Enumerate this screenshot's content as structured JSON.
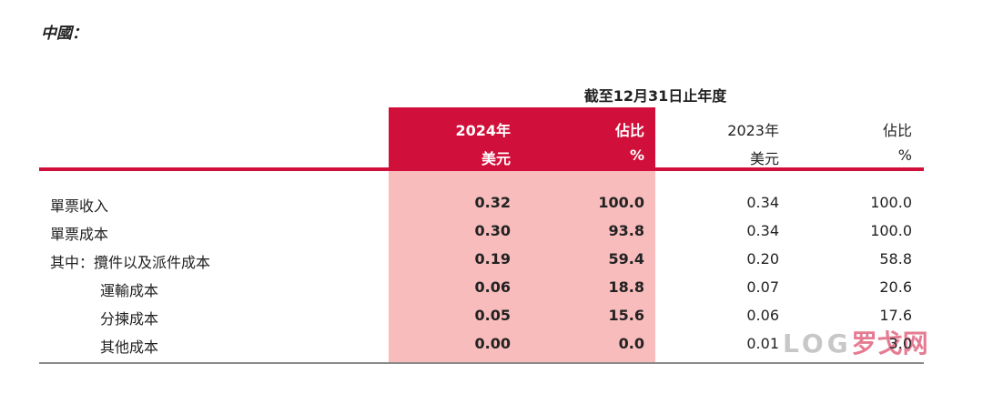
{
  "header": {
    "title": "中國：",
    "period": "截至12月31日止年度"
  },
  "table": {
    "columns": [
      [
        "2024年",
        "美元"
      ],
      [
        "佔比",
        "%"
      ],
      [
        "2023年",
        "美元"
      ],
      [
        "佔比",
        "%"
      ]
    ],
    "rows": [
      [
        "單票收入",
        "0.32",
        "100.0",
        "0.34",
        "100.0"
      ],
      [
        "單票成本",
        "0.30",
        "93.8",
        "0.34",
        "100.0"
      ],
      [
        "其中：攬件以及派件成本",
        "0.19",
        "59.4",
        "0.20",
        "58.8"
      ],
      [
        "運輸成本",
        "0.06",
        "18.8",
        "0.07",
        "20.6"
      ],
      [
        "分揀成本",
        "0.05",
        "15.6",
        "0.06",
        "17.6"
      ],
      [
        "其他成本",
        "0.00",
        "0.0",
        "0.01",
        "3.0"
      ]
    ]
  },
  "watermark": {
    "logo": "LOG",
    "text": "罗戈网"
  }
}
